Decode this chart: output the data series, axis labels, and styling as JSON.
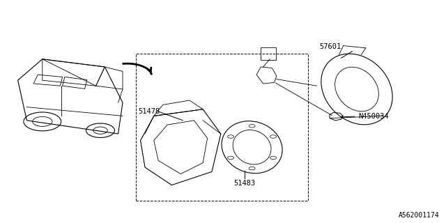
{
  "bg_color": "#ffffff",
  "line_color": "#000000",
  "diagram_id": "A562001174",
  "font_size_labels": 7.5,
  "font_size_id": 7.0
}
